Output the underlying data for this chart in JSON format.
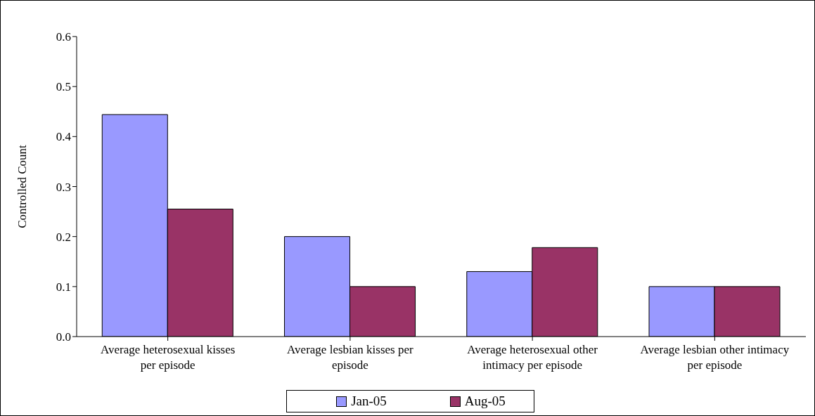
{
  "chart_data": {
    "type": "bar",
    "ylabel": "Controlled Count",
    "categories": [
      "Average heterosexual kisses per episode",
      "Average lesbian kisses per episode",
      "Average heterosexual other intimacy per episode",
      "Average lesbian other intimacy per episode"
    ],
    "series": [
      {
        "name": "Jan-05",
        "color": "#9999ff",
        "values": [
          0.444,
          0.2,
          0.13,
          0.1
        ]
      },
      {
        "name": "Aug-05",
        "color": "#993366",
        "values": [
          0.255,
          0.1,
          0.178,
          0.1
        ]
      }
    ],
    "ylim": [
      0,
      0.6
    ],
    "yticks": [
      {
        "value": 0,
        "label": "0.0"
      },
      0.1,
      0.2,
      0.3,
      0.4,
      0.5,
      0.6
    ],
    "grid": false,
    "legend": "bottom"
  }
}
